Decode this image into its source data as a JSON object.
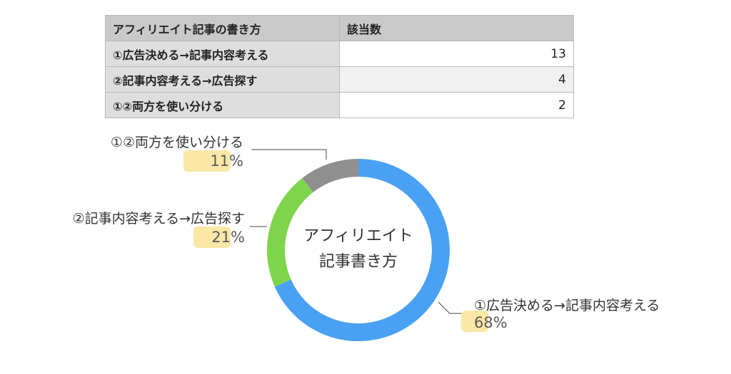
{
  "table": {
    "headers": [
      "アフィリエイト記事の書き方",
      "該当数"
    ],
    "rows": [
      {
        "label": "①広告決める→記事内容考える",
        "count": "13"
      },
      {
        "label": "②記事内容考える→広告探す",
        "count": "4"
      },
      {
        "label": "①②両方を使い分ける",
        "count": "2"
      }
    ]
  },
  "chart_data": {
    "type": "pie",
    "title": "アフィリエイト記事書き方",
    "title_lines": [
      "アフィリエイト",
      "記事書き方"
    ],
    "categories": [
      "①広告決める→記事内容考える",
      "②記事内容考える→広告探す",
      "①②両方を使い分ける"
    ],
    "values": [
      13,
      4,
      2
    ],
    "percent_labels": [
      "68%",
      "21%",
      "11%"
    ],
    "colors": [
      "#4aa1f3",
      "#7ed54b",
      "#8f8f8f"
    ],
    "highlight_color": "#fbe7a6",
    "donut": true,
    "legend": "none"
  }
}
